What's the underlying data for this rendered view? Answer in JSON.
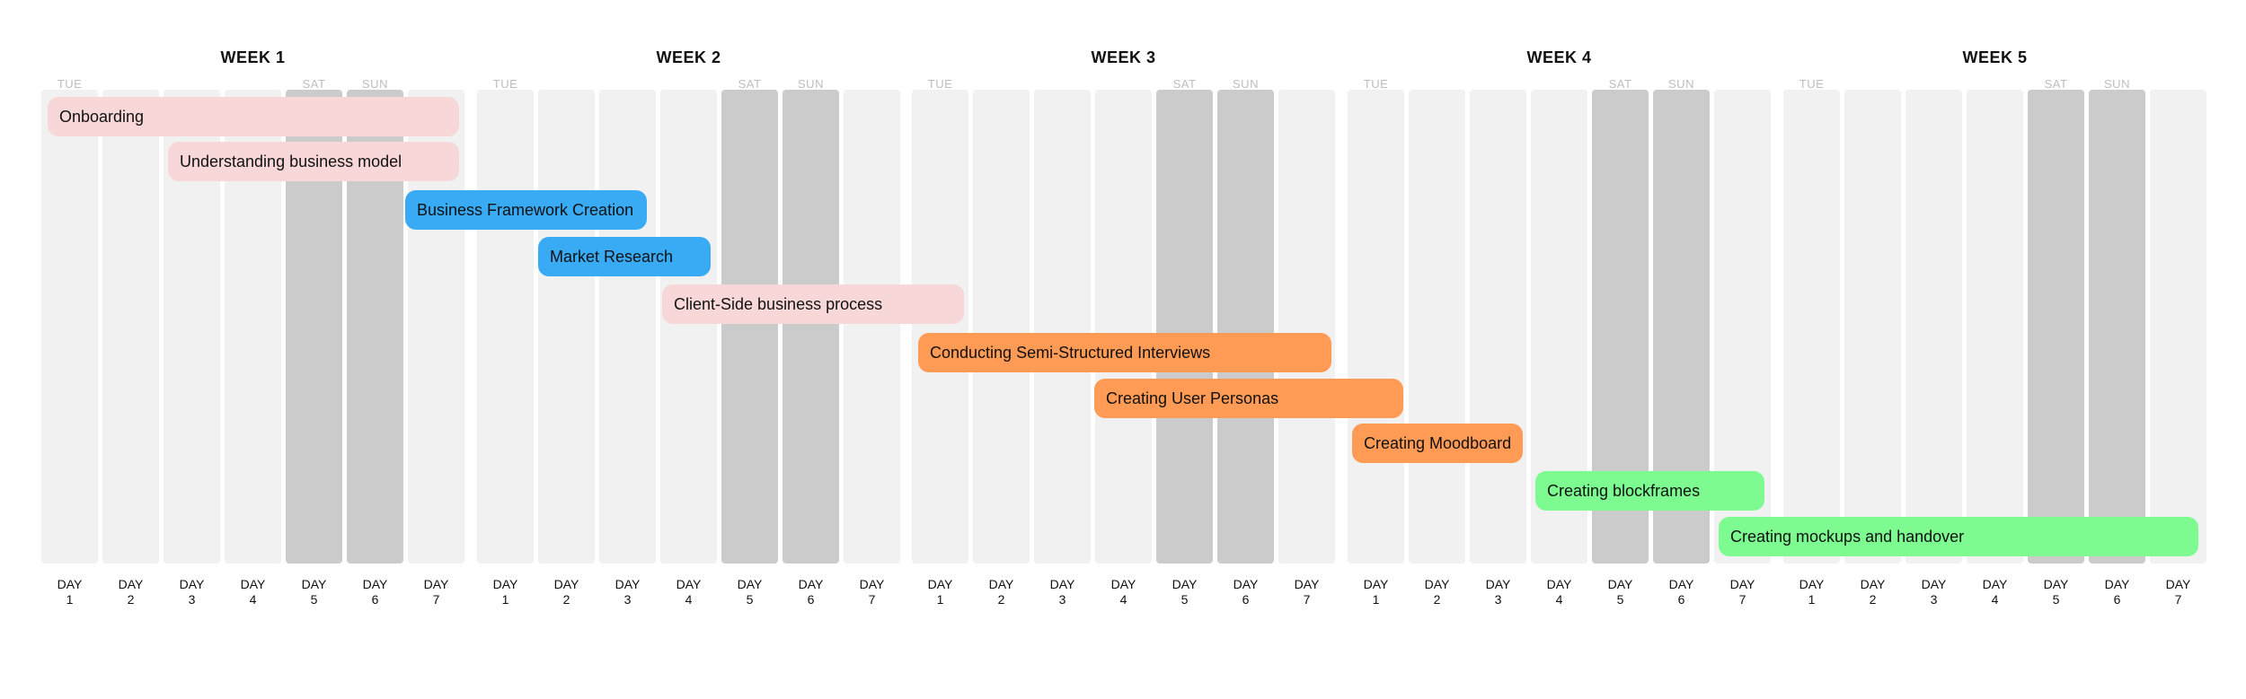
{
  "weeks": [
    "WEEK 1",
    "WEEK 2",
    "WEEK 3",
    "WEEK 4",
    "WEEK 5"
  ],
  "day_prefix": "DAY",
  "days": [
    "1",
    "2",
    "3",
    "4",
    "5",
    "6",
    "7"
  ],
  "day_names": {
    "first": "TUE",
    "sat": "SAT",
    "sun": "SUN"
  },
  "colors": {
    "phase_onboarding": "#f8d7d8",
    "phase_framework": "#39aaf4",
    "phase_research": "#ff9b55",
    "phase_design": "#7dfb90",
    "weekday": "#f1f1f1",
    "weekend": "#cbcbcb"
  },
  "tasks": [
    {
      "label": "Onboarding",
      "phase": "phase_onboarding"
    },
    {
      "label": "Understanding business model",
      "phase": "phase_onboarding"
    },
    {
      "label": "Business Framework Creation",
      "phase": "phase_framework"
    },
    {
      "label": "Market Research",
      "phase": "phase_framework"
    },
    {
      "label": "Client-Side business process",
      "phase": "phase_onboarding"
    },
    {
      "label": "Conducting Semi-Structured Interviews",
      "phase": "phase_research"
    },
    {
      "label": "Creating User Personas",
      "phase": "phase_research"
    },
    {
      "label": "Creating Moodboard",
      "phase": "phase_research"
    },
    {
      "label": "Creating blockframes",
      "phase": "phase_design"
    },
    {
      "label": "Creating mockups and handover",
      "phase": "phase_design"
    }
  ]
}
